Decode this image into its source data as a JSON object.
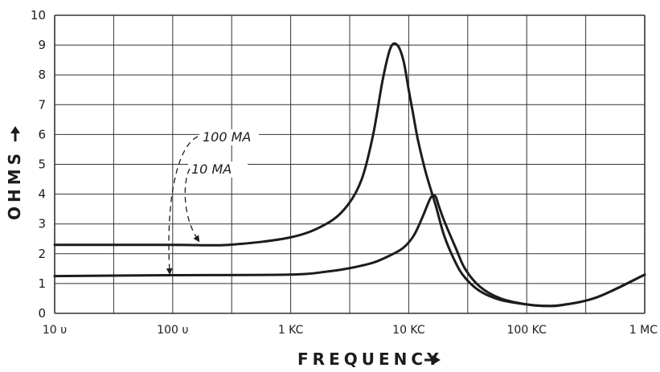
{
  "chart_data": {
    "type": "line",
    "title": "",
    "xlabel": "FREQUENCY",
    "ylabel": "OHMS",
    "x_scale": "log",
    "xlim": [
      10,
      1000000
    ],
    "ylim": [
      0,
      10
    ],
    "grid": true,
    "x_ticks": [
      {
        "value": 10,
        "label": "10 υ"
      },
      {
        "value": 100,
        "label": "100 υ"
      },
      {
        "value": 1000,
        "label": "1 KC"
      },
      {
        "value": 10000,
        "label": "10 KC"
      },
      {
        "value": 100000,
        "label": "100 KC"
      },
      {
        "value": 1000000,
        "label": "1 MC"
      }
    ],
    "y_ticks": [
      "0",
      "1",
      "2",
      "3",
      "4",
      "5",
      "6",
      "7",
      "8",
      "9",
      "10"
    ],
    "series": [
      {
        "name": "100 MA",
        "x": [
          10,
          100,
          300,
          1000,
          2000,
          3000,
          4000,
          5000,
          6000,
          7000,
          8000,
          9000,
          10000,
          11000,
          12000,
          14000,
          17000,
          20000,
          25000,
          30000,
          40000,
          60000,
          100000,
          140000,
          200000,
          400000,
          1000000
        ],
        "y": [
          2.3,
          2.3,
          2.3,
          2.55,
          3.0,
          3.6,
          4.5,
          6.0,
          7.8,
          8.9,
          9.0,
          8.5,
          7.5,
          6.6,
          5.8,
          4.7,
          3.6,
          2.6,
          1.7,
          1.2,
          0.75,
          0.45,
          0.3,
          0.25,
          0.28,
          0.55,
          1.3
        ]
      },
      {
        "name": "10 MA",
        "x": [
          10,
          100,
          1000,
          2000,
          3000,
          5000,
          7000,
          9000,
          11000,
          13000,
          15000,
          16000,
          17000,
          18000,
          20000,
          25000,
          30000,
          40000,
          60000,
          100000,
          140000,
          200000,
          400000,
          1000000
        ],
        "y": [
          1.25,
          1.28,
          1.3,
          1.4,
          1.5,
          1.7,
          1.95,
          2.2,
          2.6,
          3.2,
          3.8,
          3.95,
          3.9,
          3.6,
          3.1,
          2.2,
          1.5,
          0.9,
          0.5,
          0.3,
          0.25,
          0.28,
          0.55,
          1.3
        ]
      }
    ],
    "annotations": [
      {
        "text": "100 MA",
        "points_to_series": "100 MA"
      },
      {
        "text": "10 MA",
        "points_to_series": "10 MA"
      }
    ],
    "colors": {
      "line": "#1c1c1c",
      "grid": "#333333",
      "background": "#ffffff"
    }
  }
}
